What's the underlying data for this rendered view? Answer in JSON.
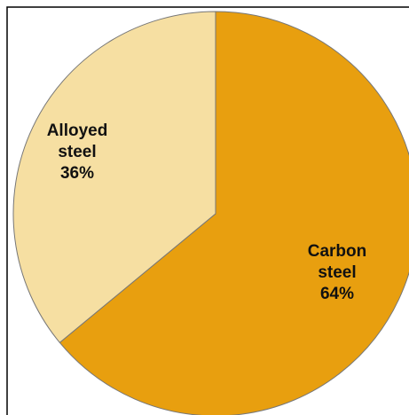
{
  "chart_data": {
    "type": "pie",
    "categories": [
      "Carbon steel",
      "Alloyed steel"
    ],
    "values": [
      64,
      36
    ],
    "value_labels": [
      "64%",
      "36%"
    ],
    "colors": [
      "#E89F0F",
      "#F6DFA2"
    ]
  }
}
